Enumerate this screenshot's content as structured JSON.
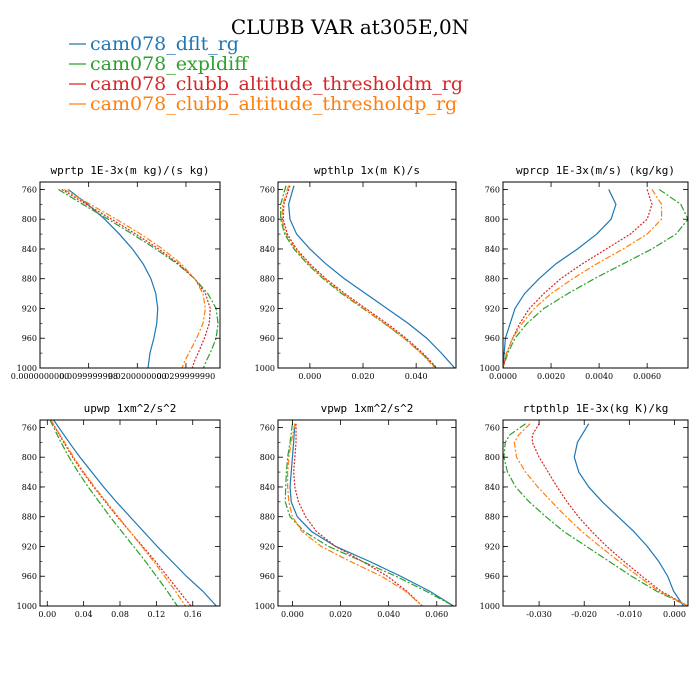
{
  "figure": {
    "title": "CLUBB VAR at305E,0N"
  },
  "colors": {
    "cam078_dflt_rg": "#1f77b4",
    "cam078_expldiff": "#2ca02c",
    "cam078_clubb_altitude_thresholdm_rg": "#d62728",
    "cam078_clubb_altitude_thresholdp_rg": "#ff7f0e"
  },
  "legend": {
    "placement": "top-left",
    "entries": [
      {
        "name": "cam078_dflt_rg",
        "color": "#1f77b4"
      },
      {
        "name": "cam078_expldiff",
        "color": "#2ca02c"
      },
      {
        "name": "cam078_clubb_altitude_thresholdm_rg",
        "color": "#d62728"
      },
      {
        "name": "cam078_clubb_altitude_thresholdp_rg",
        "color": "#ff7f0e"
      }
    ]
  },
  "chart_data": [
    {
      "type": "line",
      "title": "wprtp  1E-3x(m kg)/(s kg)",
      "xlim": [
        0.0,
        0.037
      ],
      "ylim": [
        1000,
        750
      ],
      "xticks": [
        0.0,
        0.01,
        0.02,
        0.03
      ],
      "xtick_labels": [
        "0.0000000000",
        "0.0099999998",
        "0.0200000000",
        "0.0299999990"
      ],
      "yticks": [
        760,
        800,
        840,
        880,
        920,
        960,
        1000
      ],
      "y": [
        760,
        780,
        800,
        820,
        840,
        860,
        880,
        900,
        920,
        940,
        960,
        980,
        990,
        1000
      ],
      "series": [
        {
          "name": "cam078_dflt_rg",
          "x": [
            0.0058,
            0.0098,
            0.0133,
            0.0163,
            0.019,
            0.0212,
            0.0228,
            0.0238,
            0.0242,
            0.024,
            0.0234,
            0.0226,
            0.0224,
            0.0222
          ]
        },
        {
          "name": "cam078_expldiff",
          "x": [
            0.0038,
            0.0088,
            0.014,
            0.019,
            0.0238,
            0.0282,
            0.0318,
            0.0345,
            0.0362,
            0.0366,
            0.0362,
            0.035,
            0.0342,
            0.0336
          ]
        },
        {
          "name": "cam078_clubb_altitude_thresholdm_rg",
          "x": [
            0.0045,
            0.0095,
            0.0147,
            0.0197,
            0.0244,
            0.0285,
            0.0318,
            0.034,
            0.035,
            0.0348,
            0.0338,
            0.0325,
            0.0318,
            0.0313
          ]
        },
        {
          "name": "cam078_clubb_altitude_thresholdp_rg",
          "x": [
            0.005,
            0.0103,
            0.0157,
            0.0207,
            0.0252,
            0.029,
            0.0318,
            0.0335,
            0.034,
            0.0335,
            0.0322,
            0.0306,
            0.0298,
            0.0292
          ]
        }
      ]
    },
    {
      "type": "line",
      "title": "wpthlp  1x(m K)/s",
      "xlim": [
        -0.012,
        0.055
      ],
      "ylim": [
        1000,
        750
      ],
      "xticks": [
        0.0,
        0.02,
        0.04
      ],
      "xtick_labels": [
        "0.000",
        "0.020",
        "0.040"
      ],
      "yticks": [
        760,
        800,
        840,
        880,
        920,
        960,
        1000
      ],
      "y": [
        755,
        780,
        800,
        820,
        840,
        860,
        880,
        900,
        920,
        940,
        960,
        980,
        990,
        1000
      ],
      "series": [
        {
          "name": "cam078_dflt_rg",
          "x": [
            -0.006,
            -0.008,
            -0.0075,
            -0.005,
            0.0,
            0.006,
            0.013,
            0.021,
            0.029,
            0.037,
            0.044,
            0.0495,
            0.052,
            0.0545
          ]
        },
        {
          "name": "cam078_expldiff",
          "x": [
            -0.009,
            -0.011,
            -0.011,
            -0.0095,
            -0.006,
            -0.001,
            0.005,
            0.012,
            0.02,
            0.028,
            0.0355,
            0.042,
            0.045,
            0.0475
          ]
        },
        {
          "name": "cam078_clubb_altitude_thresholdm_rg",
          "x": [
            -0.0075,
            -0.0098,
            -0.01,
            -0.0085,
            -0.005,
            0.0,
            0.006,
            0.0132,
            0.021,
            0.029,
            0.0362,
            0.0425,
            0.0452,
            0.0478
          ]
        },
        {
          "name": "cam078_clubb_altitude_thresholdp_rg",
          "x": [
            -0.008,
            -0.0102,
            -0.0105,
            -0.009,
            -0.0055,
            -0.0005,
            0.0055,
            0.0125,
            0.0203,
            0.0282,
            0.0355,
            0.0418,
            0.0445,
            0.047
          ]
        }
      ]
    },
    {
      "type": "line",
      "title": "wprcp  1E-3x(m/s) (kg/kg)",
      "xlim": [
        0.0,
        0.0077
      ],
      "ylim": [
        1000,
        750
      ],
      "xticks": [
        0.0,
        0.002,
        0.004,
        0.006
      ],
      "xtick_labels": [
        "0.0000",
        "0.0020",
        "0.0040",
        "0.0060"
      ],
      "yticks": [
        760,
        800,
        840,
        880,
        920,
        960,
        1000
      ],
      "y": [
        760,
        780,
        800,
        820,
        840,
        860,
        880,
        900,
        920,
        940,
        960,
        980,
        1000
      ],
      "series": [
        {
          "name": "cam078_dflt_rg",
          "x": [
            0.0044,
            0.0047,
            0.0045,
            0.0039,
            0.0031,
            0.0022,
            0.0015,
            0.0009,
            0.0005,
            0.0003,
            0.0001,
            5e-05,
            0.0
          ]
        },
        {
          "name": "cam078_expldiff",
          "x": [
            0.0065,
            0.0074,
            0.0077,
            0.0072,
            0.0062,
            0.005,
            0.0038,
            0.0027,
            0.0017,
            0.001,
            0.0005,
            0.0002,
            0.0
          ]
        },
        {
          "name": "cam078_clubb_altitude_thresholdm_rg",
          "x": [
            0.006,
            0.0062,
            0.006,
            0.0053,
            0.0043,
            0.0033,
            0.0024,
            0.0017,
            0.0011,
            0.0007,
            0.0004,
            0.00015,
            0.0
          ]
        },
        {
          "name": "cam078_clubb_altitude_thresholdp_rg",
          "x": [
            0.0062,
            0.0066,
            0.0066,
            0.006,
            0.005,
            0.0039,
            0.0029,
            0.002,
            0.0013,
            0.0008,
            0.0004,
            0.00015,
            0.0
          ]
        }
      ]
    },
    {
      "type": "line",
      "title": "upwp  1xm^2/s^2",
      "xlim": [
        -0.008,
        0.19
      ],
      "ylim": [
        1000,
        750
      ],
      "xticks": [
        0.0,
        0.04,
        0.08,
        0.12,
        0.16
      ],
      "xtick_labels": [
        "0.00",
        "0.04",
        "0.08",
        "0.12",
        "0.16"
      ],
      "yticks": [
        760,
        800,
        840,
        880,
        920,
        960,
        1000
      ],
      "y": [
        750,
        780,
        800,
        820,
        840,
        860,
        880,
        900,
        920,
        940,
        960,
        980,
        1000
      ],
      "series": [
        {
          "name": "cam078_dflt_rg",
          "x": [
            0.007,
            0.024,
            0.036,
            0.049,
            0.062,
            0.076,
            0.091,
            0.106,
            0.121,
            0.137,
            0.153,
            0.171,
            0.186
          ]
        },
        {
          "name": "cam078_expldiff",
          "x": [
            0.003,
            0.015,
            0.024,
            0.034,
            0.045,
            0.057,
            0.069,
            0.082,
            0.095,
            0.108,
            0.12,
            0.132,
            0.143
          ]
        },
        {
          "name": "cam078_clubb_altitude_thresholdm_rg",
          "x": [
            0.004,
            0.018,
            0.028,
            0.039,
            0.051,
            0.064,
            0.077,
            0.091,
            0.105,
            0.119,
            0.132,
            0.145,
            0.158
          ]
        },
        {
          "name": "cam078_clubb_altitude_thresholdp_rg",
          "x": [
            0.004,
            0.019,
            0.029,
            0.04,
            0.052,
            0.065,
            0.078,
            0.091,
            0.104,
            0.117,
            0.129,
            0.141,
            0.152
          ]
        }
      ]
    },
    {
      "type": "line",
      "title": "vpwp  1xm^2/s^2",
      "xlim": [
        -0.006,
        0.068
      ],
      "ylim": [
        1000,
        750
      ],
      "xticks": [
        0.0,
        0.02,
        0.04,
        0.06
      ],
      "xtick_labels": [
        "0.000",
        "0.020",
        "0.040",
        "0.060"
      ],
      "yticks": [
        760,
        800,
        840,
        880,
        920,
        960,
        1000
      ],
      "y": [
        755,
        780,
        800,
        820,
        840,
        860,
        880,
        900,
        920,
        940,
        960,
        980,
        1000
      ],
      "series": [
        {
          "name": "cam078_dflt_rg",
          "x": [
            0.001,
            0.0005,
            0.0,
            -0.0005,
            -0.001,
            -0.0005,
            0.002,
            0.008,
            0.018,
            0.032,
            0.045,
            0.057,
            0.067
          ]
        },
        {
          "name": "cam078_expldiff",
          "x": [
            0.0,
            -0.001,
            -0.002,
            -0.0025,
            -0.0028,
            -0.003,
            -0.001,
            0.005,
            0.015,
            0.029,
            0.043,
            0.0555,
            0.067
          ]
        },
        {
          "name": "cam078_clubb_altitude_thresholdm_rg",
          "x": [
            0.0015,
            0.0015,
            0.001,
            0.0005,
            0.001,
            0.0025,
            0.0055,
            0.01,
            0.018,
            0.029,
            0.0395,
            0.0475,
            0.054
          ]
        },
        {
          "name": "cam078_clubb_altitude_thresholdp_rg",
          "x": [
            0.001,
            -0.0005,
            -0.0015,
            -0.002,
            -0.002,
            -0.0015,
            0.0,
            0.004,
            0.012,
            0.024,
            0.037,
            0.047,
            0.054
          ]
        }
      ]
    },
    {
      "type": "line",
      "title": "rtpthlp  1E-3x(kg K)/kg",
      "xlim": [
        -0.038,
        0.003
      ],
      "ylim": [
        1000,
        750
      ],
      "xticks": [
        -0.03,
        -0.02,
        -0.01,
        0.0
      ],
      "xtick_labels": [
        "-0.030",
        "-0.020",
        "-0.010",
        "0.000"
      ],
      "yticks": [
        760,
        800,
        840,
        880,
        920,
        960,
        1000
      ],
      "y": [
        755,
        770,
        780,
        800,
        820,
        840,
        860,
        880,
        900,
        920,
        940,
        960,
        980,
        1000
      ],
      "series": [
        {
          "name": "cam078_dflt_rg",
          "x": [
            -0.019,
            -0.0205,
            -0.0215,
            -0.0222,
            -0.0212,
            -0.019,
            -0.016,
            -0.0125,
            -0.009,
            -0.006,
            -0.0035,
            -0.0015,
            -0.0002,
            0.002
          ]
        },
        {
          "name": "cam078_expldiff",
          "x": [
            -0.033,
            -0.0365,
            -0.0375,
            -0.0378,
            -0.037,
            -0.0352,
            -0.0322,
            -0.0285,
            -0.0245,
            -0.0195,
            -0.0145,
            -0.0095,
            -0.004,
            0.003
          ]
        },
        {
          "name": "cam078_clubb_altitude_thresholdm_rg",
          "x": [
            -0.03,
            -0.0315,
            -0.0315,
            -0.03,
            -0.028,
            -0.026,
            -0.0238,
            -0.0213,
            -0.0183,
            -0.015,
            -0.0112,
            -0.0072,
            -0.003,
            0.003
          ]
        },
        {
          "name": "cam078_clubb_altitude_thresholdp_rg",
          "x": [
            -0.032,
            -0.0345,
            -0.0355,
            -0.035,
            -0.033,
            -0.0303,
            -0.0272,
            -0.024,
            -0.0205,
            -0.0165,
            -0.0123,
            -0.008,
            -0.0035,
            0.003
          ]
        }
      ]
    }
  ]
}
